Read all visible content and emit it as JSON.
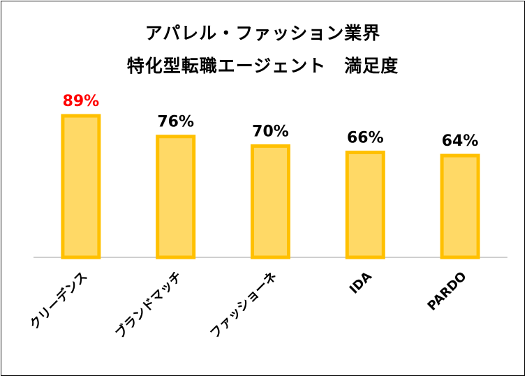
{
  "chart_data": {
    "type": "bar",
    "title_line1": "アパレル・ファッション業界",
    "title_line2": "特化型転職エージェント　満足度",
    "categories": [
      "クリーデンス",
      "ブランドマッチ",
      "ファッショーネ",
      "IDA",
      "PARDO"
    ],
    "values": [
      89,
      76,
      70,
      66,
      64
    ],
    "value_labels": [
      "89%",
      "76%",
      "70%",
      "66%",
      "64%"
    ],
    "highlight_index": 0,
    "ylim": [
      0,
      100
    ],
    "grid": false,
    "legend": "none",
    "colors": {
      "bar_fill": "#FFD966",
      "bar_border": "#FFC000",
      "highlight_label": "#FF0000",
      "label": "#000000",
      "axis": "#BFBFBF"
    }
  }
}
